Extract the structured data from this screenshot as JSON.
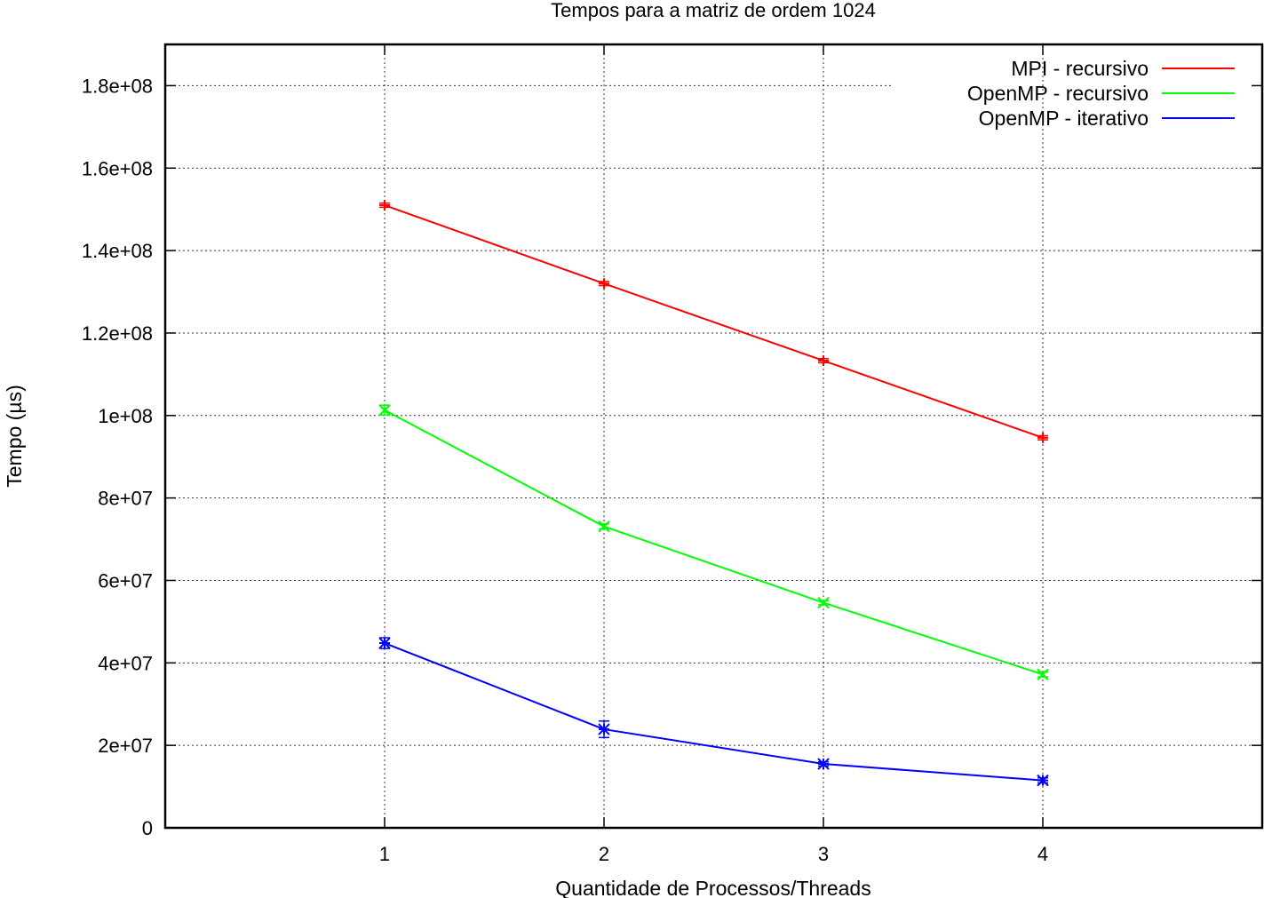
{
  "chart_data": {
    "type": "line",
    "title": "Tempos para a matriz de ordem 1024",
    "xlabel": "Quantidade de Processos/Threads",
    "ylabel": "Tempo (µs)",
    "x": [
      1,
      2,
      3,
      4
    ],
    "xlim": [
      0,
      5
    ],
    "ylim": [
      0,
      190000000
    ],
    "x_ticks": [
      {
        "value": 1,
        "label": "1"
      },
      {
        "value": 2,
        "label": "2"
      },
      {
        "value": 3,
        "label": "3"
      },
      {
        "value": 4,
        "label": "4"
      }
    ],
    "y_ticks": [
      {
        "value": 0,
        "label": "0"
      },
      {
        "value": 20000000,
        "label": "2e+07"
      },
      {
        "value": 40000000,
        "label": "4e+07"
      },
      {
        "value": 60000000,
        "label": "6e+07"
      },
      {
        "value": 80000000,
        "label": "8e+07"
      },
      {
        "value": 100000000,
        "label": "1e+08"
      },
      {
        "value": 120000000,
        "label": "1.2e+08"
      },
      {
        "value": 140000000,
        "label": "1.4e+08"
      },
      {
        "value": 160000000,
        "label": "1.6e+08"
      },
      {
        "value": 180000000,
        "label": "1.8e+08"
      }
    ],
    "grid": true,
    "legend_position": "top-right",
    "series": [
      {
        "name": "MPI - recursivo",
        "color": "#ff0000",
        "marker": "plus",
        "values": [
          151000000,
          132000000,
          113300000,
          94600000
        ],
        "errors": [
          500000,
          500000,
          500000,
          500000
        ]
      },
      {
        "name": "OpenMP - recursivo",
        "color": "#00ff00",
        "marker": "cross",
        "values": [
          101300000,
          73100000,
          54600000,
          37200000
        ],
        "errors": [
          1200000,
          600000,
          500000,
          600000
        ]
      },
      {
        "name": "OpenMP - iterativo",
        "color": "#0000ff",
        "marker": "star",
        "values": [
          44800000,
          23900000,
          15500000,
          11500000
        ],
        "errors": [
          1300000,
          2000000,
          500000,
          600000
        ]
      }
    ]
  }
}
